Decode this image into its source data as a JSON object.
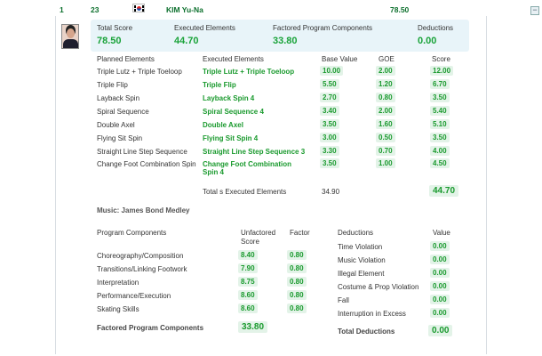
{
  "header": {
    "rank": "1",
    "start_number": "23",
    "flag_icon": "korea-flag-icon",
    "skater_name": "KIM Yu-Na",
    "total": "78.50"
  },
  "summary": {
    "total_score_label": "Total Score",
    "total_score": "78.50",
    "executed_label": "Executed Elements",
    "executed": "44.70",
    "factored_label": "Factored Program Components",
    "factored": "33.80",
    "deductions_label": "Deductions",
    "deductions": "0.00"
  },
  "elements_table": {
    "headers": {
      "planned": "Planned Elements",
      "executed": "Executed Elements",
      "base": "Base Value",
      "goe": "GOE",
      "score": "Score"
    },
    "rows": [
      {
        "planned": "Triple Lutz + Triple Toeloop",
        "executed": "Triple Lutz + Triple Toeloop",
        "base": "10.00",
        "goe": "2.00",
        "score": "12.00"
      },
      {
        "planned": "Triple Flip",
        "executed": "Triple Flip",
        "base": "5.50",
        "goe": "1.20",
        "score": "6.70"
      },
      {
        "planned": "Layback Spin",
        "executed": "Layback Spin 4",
        "base": "2.70",
        "goe": "0.80",
        "score": "3.50"
      },
      {
        "planned": "Spiral Sequence",
        "executed": "Spiral Sequence 4",
        "base": "3.40",
        "goe": "2.00",
        "score": "5.40"
      },
      {
        "planned": "Double Axel",
        "executed": "Double Axel",
        "base": "3.50",
        "goe": "1.60",
        "score": "5.10"
      },
      {
        "planned": "Flying Sit Spin",
        "executed": "Flying Sit Spin 4",
        "base": "3.00",
        "goe": "0.50",
        "score": "3.50"
      },
      {
        "planned": "Straight Line Step Sequence",
        "executed": "Straight Line Step Sequence 3",
        "base": "3.30",
        "goe": "0.70",
        "score": "4.00"
      },
      {
        "planned": "Change Foot Combination Spin",
        "executed": "Change Foot Combination",
        "executed_line2": "Spin 4",
        "base": "3.50",
        "goe": "1.00",
        "score": "4.50"
      }
    ],
    "totals_label": "Total s Executed Elements",
    "totals_base": "34.90",
    "totals_score": "44.70"
  },
  "music": "Music: James Bond Medley",
  "components": {
    "header": "Program Components",
    "unfactored_header": "Unfactored Score",
    "factor_header": "Factor",
    "rows": [
      {
        "name": "Choreography/Composition",
        "score": "8.40",
        "factor": "0.80"
      },
      {
        "name": "Transitions/Linking Footwork",
        "score": "7.90",
        "factor": "0.80"
      },
      {
        "name": "Interpretation",
        "score": "8.75",
        "factor": "0.80"
      },
      {
        "name": "Performance/Execution",
        "score": "8.60",
        "factor": "0.80"
      },
      {
        "name": "Skating Skills",
        "score": "8.60",
        "factor": "0.80"
      }
    ],
    "factored_label": "Factored Program Components",
    "factored_total": "33.80"
  },
  "deductions": {
    "header": "Deductions",
    "value_header": "Value",
    "rows": [
      {
        "name": "Time Violation",
        "value": "0.00"
      },
      {
        "name": "Music Violation",
        "value": "0.00"
      },
      {
        "name": "Illegal Element",
        "value": "0.00"
      },
      {
        "name": "Costume & Prop Violation",
        "value": "0.00"
      },
      {
        "name": "Fall",
        "value": "0.00"
      },
      {
        "name": "Interruption in Excess",
        "value": "0.00"
      }
    ],
    "total_label": "Total Deductions",
    "total": "0.00"
  }
}
